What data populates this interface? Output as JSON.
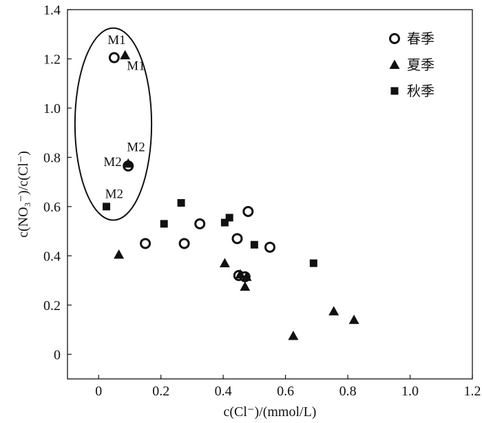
{
  "chart_data": {
    "type": "scatter",
    "title": "",
    "xlabel": "c(Cl⁻)/(mmol/L)",
    "ylabel": "c(NO₃⁻)/c(Cl⁻)",
    "xlim": [
      -0.1,
      1.2
    ],
    "ylim": [
      -0.1,
      1.4
    ],
    "xticks": [
      0,
      0.2,
      0.4,
      0.6,
      0.8,
      1.0,
      1.2
    ],
    "xtick_labels": [
      "0",
      "0.2",
      "0.4",
      "0.6",
      "0.8",
      "1.0",
      "1.2"
    ],
    "yticks": [
      0,
      0.2,
      0.4,
      0.6,
      0.8,
      1.0,
      1.2,
      1.4
    ],
    "ytick_labels": [
      "0",
      "0.2",
      "0.4",
      "0.6",
      "0.8",
      "1.0",
      "1.2",
      "1.4"
    ],
    "grid": false,
    "legend_position": "top-right",
    "series": [
      {
        "name": "春季",
        "marker": "circle-open",
        "points": [
          {
            "x": 0.05,
            "y": 1.205
          },
          {
            "x": 0.095,
            "y": 0.765
          },
          {
            "x": 0.15,
            "y": 0.45
          },
          {
            "x": 0.275,
            "y": 0.45
          },
          {
            "x": 0.325,
            "y": 0.53
          },
          {
            "x": 0.445,
            "y": 0.47
          },
          {
            "x": 0.48,
            "y": 0.58
          },
          {
            "x": 0.55,
            "y": 0.435
          },
          {
            "x": 0.45,
            "y": 0.32
          },
          {
            "x": 0.47,
            "y": 0.315
          }
        ]
      },
      {
        "name": "夏季",
        "marker": "triangle-filled",
        "points": [
          {
            "x": 0.085,
            "y": 1.215
          },
          {
            "x": 0.095,
            "y": 0.775
          },
          {
            "x": 0.065,
            "y": 0.405
          },
          {
            "x": 0.405,
            "y": 0.37
          },
          {
            "x": 0.455,
            "y": 0.325
          },
          {
            "x": 0.475,
            "y": 0.315
          },
          {
            "x": 0.47,
            "y": 0.275
          },
          {
            "x": 0.625,
            "y": 0.075
          },
          {
            "x": 0.755,
            "y": 0.175
          },
          {
            "x": 0.82,
            "y": 0.14
          }
        ]
      },
      {
        "name": "秋季",
        "marker": "square-filled",
        "points": [
          {
            "x": 0.025,
            "y": 0.6
          },
          {
            "x": 0.21,
            "y": 0.53
          },
          {
            "x": 0.265,
            "y": 0.615
          },
          {
            "x": 0.405,
            "y": 0.535
          },
          {
            "x": 0.42,
            "y": 0.555
          },
          {
            "x": 0.5,
            "y": 0.445
          },
          {
            "x": 0.69,
            "y": 0.37
          }
        ]
      }
    ],
    "annotations": [
      {
        "text": "M1",
        "x": 0.058,
        "y": 1.26
      },
      {
        "text": "M1",
        "x": 0.12,
        "y": 1.155
      },
      {
        "text": "M2",
        "x": 0.12,
        "y": 0.825
      },
      {
        "text": "M2",
        "x": 0.045,
        "y": 0.765
      },
      {
        "text": "M2",
        "x": 0.05,
        "y": 0.635
      }
    ],
    "ellipse": {
      "cx": 0.047,
      "cy": 0.935,
      "rx": 0.123,
      "ry": 0.39
    }
  }
}
